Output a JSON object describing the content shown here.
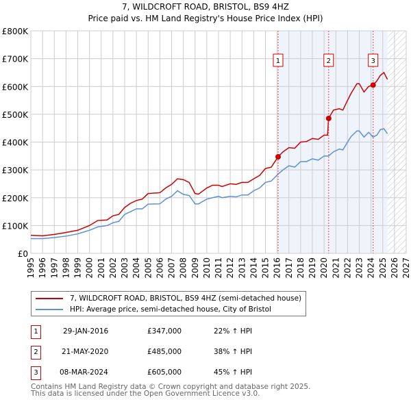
{
  "chart_data": {
    "type": "line",
    "title": "7, WILDCROFT ROAD, BRISTOL, BS9 4HZ",
    "subtitle": "Price paid vs. HM Land Registry's House Price Index (HPI)",
    "xlim": [
      1995,
      2027
    ],
    "ylim": [
      0,
      800000
    ],
    "yticks": [
      {
        "v": 0,
        "label": "£0"
      },
      {
        "v": 100000,
        "label": "£100K"
      },
      {
        "v": 200000,
        "label": "£200K"
      },
      {
        "v": 300000,
        "label": "£300K"
      },
      {
        "v": 400000,
        "label": "£400K"
      },
      {
        "v": 500000,
        "label": "£500K"
      },
      {
        "v": 600000,
        "label": "£600K"
      },
      {
        "v": 700000,
        "label": "£700K"
      },
      {
        "v": 800000,
        "label": "£800K"
      }
    ],
    "xticks": [
      "1995",
      "1996",
      "1997",
      "1998",
      "1999",
      "2000",
      "2001",
      "2002",
      "2003",
      "2004",
      "2005",
      "2006",
      "2007",
      "2008",
      "2009",
      "2010",
      "2011",
      "2012",
      "2013",
      "2014",
      "2015",
      "2016",
      "2017",
      "2018",
      "2019",
      "2020",
      "2021",
      "2022",
      "2023",
      "2024",
      "2025",
      "2026",
      "2027"
    ],
    "grid": true,
    "shaded_range": [
      2016.08,
      2025.4
    ],
    "forecast_hatch_from": 2025.4,
    "series": [
      {
        "name": "7, WILDCROFT ROAD, BRISTOL, BS9 4HZ (semi-detached house)",
        "color": "#cc0000",
        "x": [
          1995,
          1996,
          1997,
          1998,
          1999,
          2000,
          2000.7,
          2001.5,
          2002,
          2002.5,
          2003,
          2003.5,
          2004,
          2004.5,
          2005,
          2006,
          2006.5,
          2007,
          2007.5,
          2008,
          2008.5,
          2009,
          2009.3,
          2010,
          2010.5,
          2011,
          2011.3,
          2012,
          2012.5,
          2013,
          2013.5,
          2014,
          2014.5,
          2015,
          2015.5,
          2016.08,
          2016.5,
          2017,
          2017.5,
          2018,
          2018.5,
          2019,
          2019.5,
          2020,
          2020.3,
          2020.38,
          2020.8,
          2021.3,
          2021.6,
          2022,
          2022.3,
          2022.8,
          2023,
          2023.4,
          2023.8,
          2024.18,
          2024.5,
          2024.8,
          2025.1,
          2025.4
        ],
        "y": [
          65000,
          63000,
          68000,
          75000,
          83000,
          100000,
          118000,
          120000,
          135000,
          140000,
          165000,
          180000,
          190000,
          195000,
          215000,
          218000,
          235000,
          248000,
          268000,
          265000,
          255000,
          215000,
          213000,
          235000,
          245000,
          245000,
          240000,
          250000,
          248000,
          255000,
          255000,
          268000,
          280000,
          305000,
          310000,
          347000,
          365000,
          380000,
          378000,
          400000,
          402000,
          413000,
          410000,
          425000,
          425000,
          485000,
          515000,
          520000,
          515000,
          550000,
          575000,
          610000,
          610000,
          580000,
          600000,
          605000,
          620000,
          640000,
          650000,
          625000
        ]
      },
      {
        "name": "HPI: Average price, semi-detached house, City of Bristol",
        "color": "#5b8fd6",
        "x": [
          1995,
          1996,
          1997,
          1998,
          1999,
          2000,
          2000.7,
          2001.5,
          2002,
          2002.5,
          2003,
          2003.5,
          2004,
          2004.5,
          2005,
          2006,
          2006.5,
          2007,
          2007.5,
          2008,
          2008.5,
          2009,
          2009.3,
          2010,
          2010.5,
          2011,
          2011.3,
          2012,
          2012.5,
          2013,
          2013.5,
          2014,
          2014.5,
          2015,
          2015.5,
          2016.08,
          2016.5,
          2017,
          2017.5,
          2018,
          2018.5,
          2019,
          2019.5,
          2020,
          2020.38,
          2020.8,
          2021.3,
          2021.6,
          2022,
          2022.3,
          2022.8,
          2023,
          2023.4,
          2023.8,
          2024.18,
          2024.5,
          2024.8,
          2025.1,
          2025.4
        ],
        "y": [
          53000,
          53000,
          57000,
          62000,
          70000,
          83000,
          95000,
          100000,
          110000,
          115000,
          140000,
          150000,
          160000,
          160000,
          177000,
          178000,
          195000,
          205000,
          225000,
          212000,
          208000,
          178000,
          178000,
          195000,
          200000,
          205000,
          200000,
          205000,
          203000,
          210000,
          210000,
          225000,
          235000,
          255000,
          260000,
          285000,
          300000,
          315000,
          310000,
          330000,
          330000,
          340000,
          335000,
          350000,
          350000,
          365000,
          375000,
          372000,
          400000,
          420000,
          440000,
          440000,
          418000,
          435000,
          418000,
          425000,
          445000,
          448000,
          430000
        ]
      }
    ],
    "sales": [
      {
        "n": "1",
        "x": 2016.08,
        "y": 347000,
        "date": "29-JAN-2016",
        "price": "£347,000",
        "hpi": "22% ↑ HPI"
      },
      {
        "n": "2",
        "x": 2020.39,
        "y": 485000,
        "date": "21-MAY-2020",
        "price": "£485,000",
        "hpi": "38% ↑ HPI"
      },
      {
        "n": "3",
        "x": 2024.18,
        "y": 605000,
        "date": "08-MAR-2024",
        "price": "£605,000",
        "hpi": "45% ↑ HPI"
      }
    ]
  },
  "footer": {
    "line1": "Contains HM Land Registry data © Crown copyright and database right 2025.",
    "line2": "This data is licensed under the Open Government Licence v3.0."
  }
}
